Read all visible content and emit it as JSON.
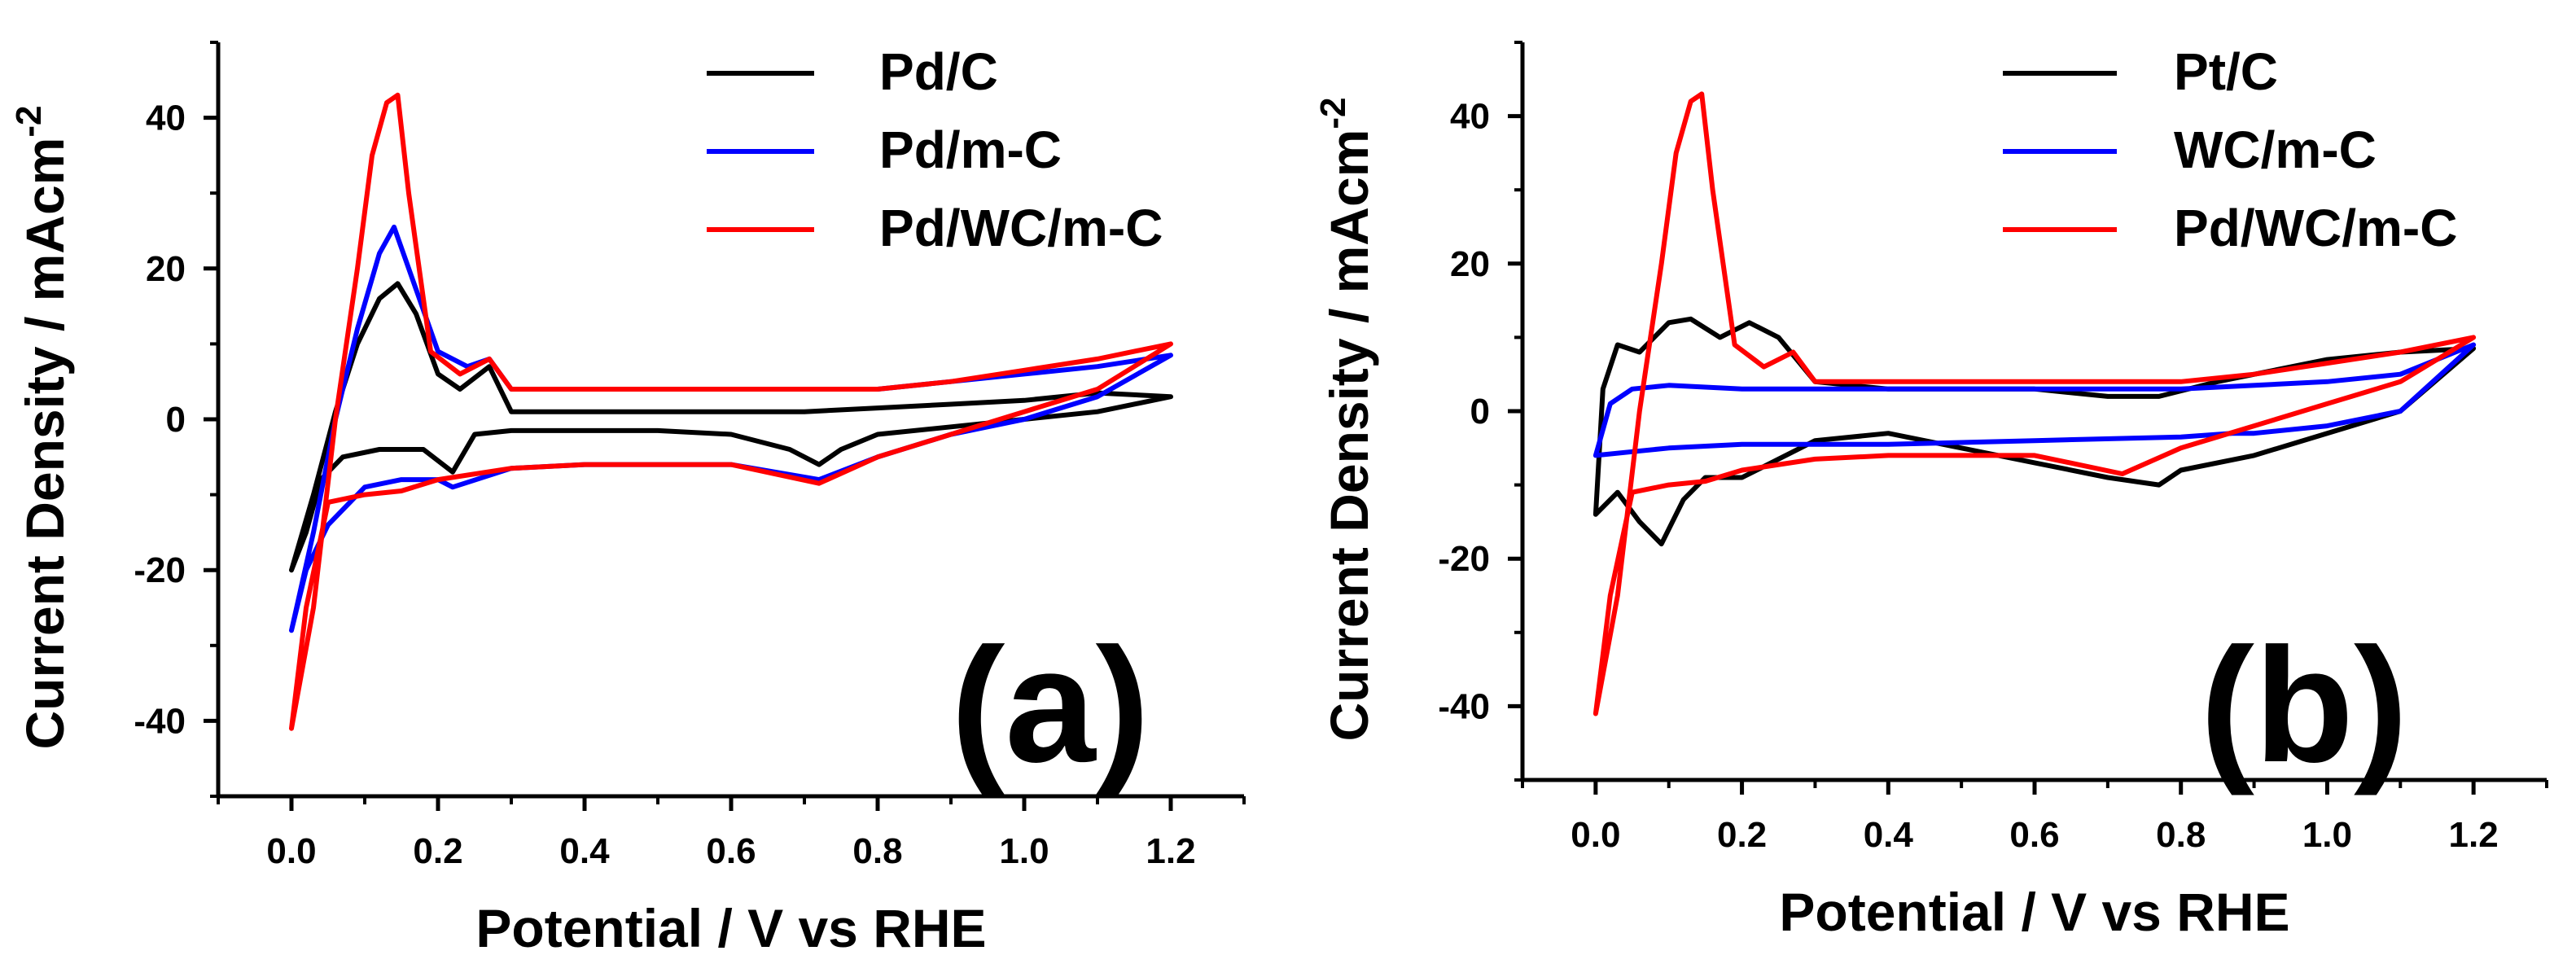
{
  "chart_data": [
    {
      "panel": "(a)",
      "type": "line",
      "xlabel": "Potential / V vs RHE",
      "ylabel": "Current Density / mAcm",
      "ylabel_superscript": "-2",
      "xlim": [
        -0.1,
        1.3
      ],
      "ylim": [
        -50,
        50
      ],
      "xticks": [
        "0.0",
        "0.2",
        "0.4",
        "0.6",
        "0.8",
        "1.0",
        "1.2"
      ],
      "yticks": [
        "-40",
        "-20",
        "0",
        "20",
        "40"
      ],
      "legend": "top-right",
      "series": [
        {
          "name": "Pd/C",
          "color": "#000000",
          "x": [
            0.0,
            0.03,
            0.06,
            0.09,
            0.12,
            0.145,
            0.17,
            0.2,
            0.23,
            0.27,
            0.3,
            0.4,
            0.5,
            0.6,
            0.7,
            0.8,
            0.9,
            1.0,
            1.1,
            1.2,
            1.1,
            1.0,
            0.9,
            0.8,
            0.75,
            0.72,
            0.68,
            0.6,
            0.5,
            0.4,
            0.3,
            0.25,
            0.22,
            0.18,
            0.12,
            0.07,
            0.04,
            0.02,
            0.0
          ],
          "y": [
            -20,
            -10,
            1,
            10,
            16,
            18,
            14,
            6,
            4,
            7,
            1,
            1,
            1,
            1,
            1,
            1.5,
            2,
            2.5,
            3.5,
            3,
            1,
            0,
            -1,
            -2,
            -4,
            -6,
            -4,
            -2,
            -1.5,
            -1.5,
            -1.5,
            -2,
            -7,
            -4,
            -4,
            -5,
            -8,
            -15,
            -20
          ]
        },
        {
          "name": "Pd/m-C",
          "color": "#0000ff",
          "x": [
            0.0,
            0.03,
            0.06,
            0.09,
            0.12,
            0.14,
            0.16,
            0.2,
            0.24,
            0.27,
            0.3,
            0.4,
            0.5,
            0.6,
            0.7,
            0.8,
            0.9,
            1.0,
            1.1,
            1.2,
            1.1,
            1.0,
            0.9,
            0.8,
            0.72,
            0.6,
            0.5,
            0.4,
            0.3,
            0.22,
            0.2,
            0.15,
            0.1,
            0.05,
            0.02,
            0.0
          ],
          "y": [
            -28,
            -15,
            0,
            12,
            22,
            25.5,
            20,
            9,
            7,
            8,
            4,
            4,
            4,
            4,
            4,
            4,
            5,
            6,
            7,
            8.5,
            3,
            0,
            -2,
            -5,
            -8,
            -6,
            -6,
            -6,
            -6.5,
            -9,
            -8,
            -8,
            -9,
            -14,
            -20,
            -28
          ]
        },
        {
          "name": "Pd/WC/m-C",
          "color": "#ff0000",
          "x": [
            0.0,
            0.03,
            0.06,
            0.09,
            0.11,
            0.13,
            0.145,
            0.16,
            0.19,
            0.23,
            0.27,
            0.3,
            0.4,
            0.5,
            0.6,
            0.7,
            0.8,
            0.9,
            1.0,
            1.1,
            1.2,
            1.1,
            1.0,
            0.9,
            0.8,
            0.72,
            0.6,
            0.5,
            0.4,
            0.3,
            0.2,
            0.15,
            0.1,
            0.05,
            0.02,
            0.0
          ],
          "y": [
            -41,
            -25,
            0,
            20,
            35,
            42,
            43,
            30,
            9,
            6,
            8,
            4,
            4,
            4,
            4,
            4,
            4,
            5,
            6.5,
            8,
            10,
            4,
            1,
            -2,
            -5,
            -8.5,
            -6,
            -6,
            -6,
            -6.5,
            -8,
            -9.5,
            -10,
            -11,
            -25,
            -41
          ]
        }
      ]
    },
    {
      "panel": "(b)",
      "type": "line",
      "xlabel": "Potential / V vs RHE",
      "ylabel": "Current Density / mAcm",
      "ylabel_superscript": "-2",
      "xlim": [
        -0.1,
        1.3
      ],
      "ylim": [
        -50,
        50
      ],
      "xticks": [
        "0.0",
        "0.2",
        "0.4",
        "0.6",
        "0.8",
        "1.0",
        "1.2"
      ],
      "yticks": [
        "-40",
        "-20",
        "0",
        "20",
        "40"
      ],
      "legend": "top-right",
      "series": [
        {
          "name": "Pt/C",
          "color": "#000000",
          "x": [
            0.0,
            0.01,
            0.03,
            0.06,
            0.1,
            0.13,
            0.17,
            0.21,
            0.25,
            0.3,
            0.4,
            0.5,
            0.6,
            0.7,
            0.77,
            0.85,
            1.0,
            1.1,
            1.2,
            1.1,
            1.0,
            0.9,
            0.8,
            0.77,
            0.7,
            0.6,
            0.5,
            0.4,
            0.3,
            0.2,
            0.15,
            0.12,
            0.09,
            0.06,
            0.03,
            0.0
          ],
          "y": [
            -14,
            3,
            9,
            8,
            12,
            12.5,
            10,
            12,
            10,
            4,
            3,
            3,
            3,
            2,
            2,
            4,
            7,
            8,
            8.5,
            0,
            -3,
            -6,
            -8,
            -10,
            -9,
            -7,
            -5,
            -3,
            -4,
            -9,
            -9,
            -12,
            -18,
            -15,
            -11,
            -14
          ]
        },
        {
          "name": "WC/m-C",
          "color": "#0000ff",
          "x": [
            0.0,
            0.02,
            0.05,
            0.1,
            0.2,
            0.4,
            0.6,
            0.8,
            1.0,
            1.1,
            1.2,
            1.1,
            1.0,
            0.9,
            0.87,
            0.8,
            0.6,
            0.4,
            0.2,
            0.1,
            0.05,
            0.0
          ],
          "y": [
            -6,
            1,
            3,
            3.5,
            3,
            3,
            3,
            3,
            4,
            5,
            9,
            0,
            -2,
            -3,
            -3,
            -3.5,
            -4,
            -4.5,
            -4.5,
            -5,
            -5.5,
            -6
          ]
        },
        {
          "name": "Pd/WC/m-C",
          "color": "#ff0000",
          "x": [
            0.0,
            0.03,
            0.06,
            0.09,
            0.11,
            0.13,
            0.145,
            0.16,
            0.19,
            0.23,
            0.27,
            0.3,
            0.4,
            0.5,
            0.6,
            0.7,
            0.8,
            0.9,
            1.0,
            1.1,
            1.2,
            1.1,
            1.0,
            0.9,
            0.8,
            0.72,
            0.6,
            0.5,
            0.4,
            0.3,
            0.2,
            0.15,
            0.1,
            0.05,
            0.02,
            0.0
          ],
          "y": [
            -41,
            -25,
            0,
            20,
            35,
            42,
            43,
            30,
            9,
            6,
            8,
            4,
            4,
            4,
            4,
            4,
            4,
            5,
            6.5,
            8,
            10,
            4,
            1,
            -2,
            -5,
            -8.5,
            -6,
            -6,
            -6,
            -6.5,
            -8,
            -9.5,
            -10,
            -11,
            -25,
            -41
          ]
        }
      ]
    }
  ]
}
